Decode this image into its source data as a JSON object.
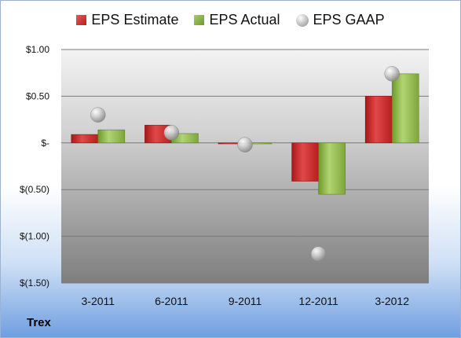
{
  "company_label": "Trex",
  "colors": {
    "estimate": "#c42a2a",
    "actual": "#86b043",
    "gaap": "#b0b0b0"
  },
  "chart_data": {
    "type": "bar",
    "title": "",
    "xlabel": "",
    "ylabel": "",
    "categories": [
      "3-2011",
      "6-2011",
      "9-2011",
      "12-2011",
      "3-2012"
    ],
    "series": [
      {
        "name": "EPS Estimate",
        "kind": "bar",
        "values": [
          0.09,
          0.19,
          -0.01,
          -0.41,
          0.5
        ]
      },
      {
        "name": "EPS Actual",
        "kind": "bar",
        "values": [
          0.14,
          0.1,
          0.0,
          -0.55,
          0.74
        ]
      },
      {
        "name": "EPS GAAP",
        "kind": "marker",
        "values": [
          0.3,
          0.11,
          -0.02,
          -1.19,
          0.74
        ]
      }
    ],
    "ylim": [
      -1.5,
      1.0
    ],
    "yticks": [
      1.0,
      0.5,
      0,
      -0.5,
      -1.0,
      -1.5
    ],
    "ytick_labels": [
      "$1.00",
      "$0.50",
      "$-",
      "$(0.50)",
      "$(1.00)",
      "$(1.50)"
    ],
    "grid": true,
    "legend_position": "top"
  }
}
